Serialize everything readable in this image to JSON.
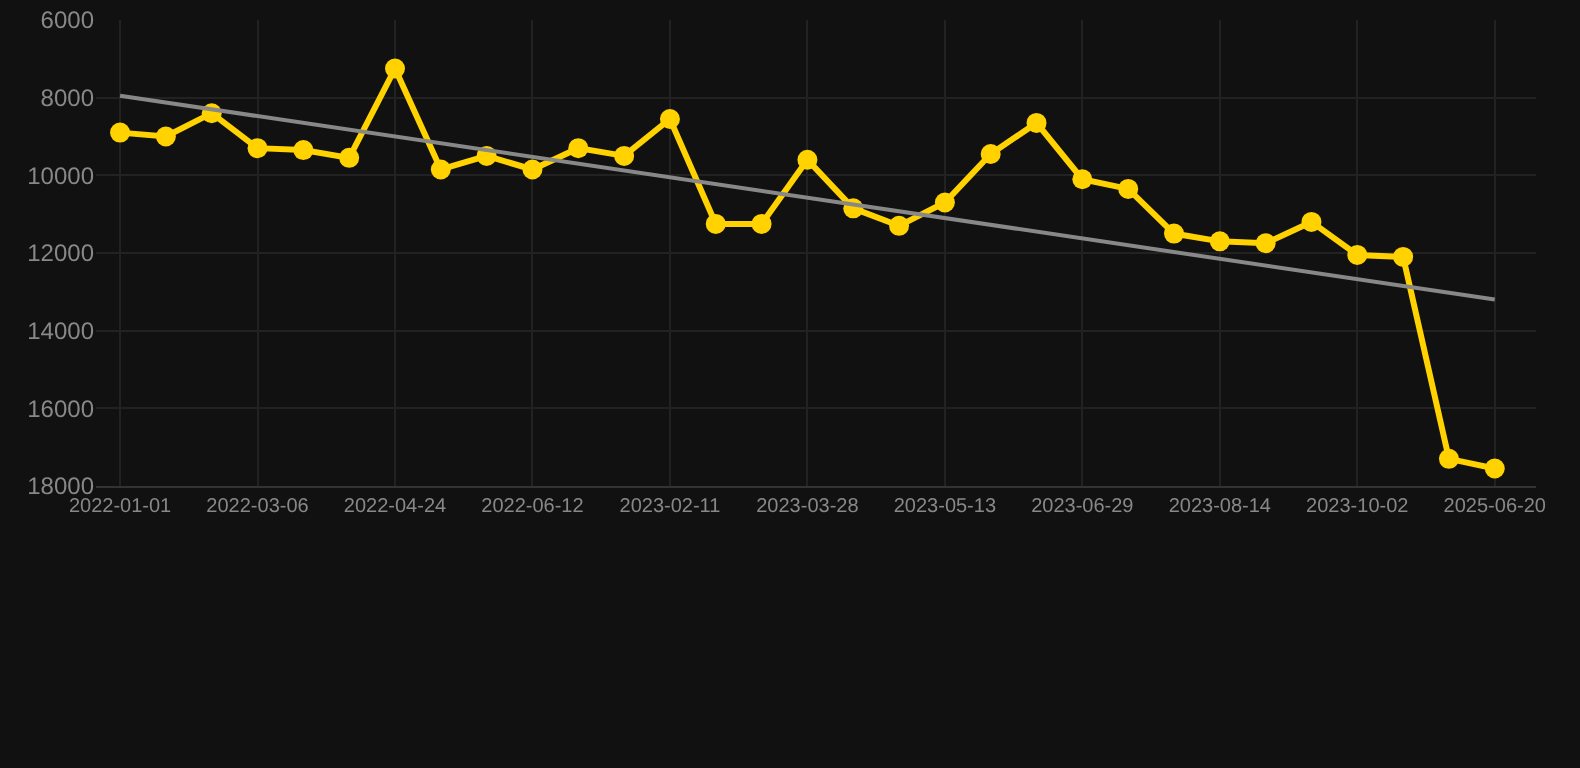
{
  "chart_data": {
    "type": "line",
    "categories": [
      "2022-01-01",
      null,
      null,
      "2022-03-06",
      null,
      null,
      "2022-04-24",
      null,
      null,
      "2022-06-12",
      null,
      null,
      "2023-02-11",
      null,
      null,
      "2023-03-28",
      null,
      null,
      "2023-05-13",
      null,
      null,
      "2023-06-29",
      null,
      null,
      "2023-08-14",
      null,
      null,
      "2023-10-02",
      null,
      null,
      "2025-06-20"
    ],
    "series": [
      {
        "color": "#ffd200",
        "marker": "circle",
        "values": [
          8900,
          9000,
          8400,
          9300,
          9350,
          9550,
          7250,
          9850,
          9500,
          9850,
          9300,
          9500,
          8550,
          11250,
          11250,
          9600,
          10850,
          11300,
          10700,
          9450,
          8650,
          10100,
          10350,
          11500,
          11700,
          11750,
          11200,
          12050,
          12100,
          17300,
          17550
        ]
      },
      {
        "color": "#888888",
        "marker": "none",
        "values": [
          7950,
          null,
          null,
          null,
          null,
          null,
          null,
          null,
          null,
          null,
          null,
          null,
          null,
          null,
          null,
          null,
          null,
          null,
          null,
          null,
          null,
          null,
          null,
          null,
          null,
          null,
          null,
          null,
          null,
          null,
          13200
        ]
      }
    ],
    "ylim": [
      18000,
      6000
    ],
    "yticks": [
      6000,
      8000,
      10000,
      12000,
      14000,
      16000,
      18000
    ],
    "grid": true
  }
}
